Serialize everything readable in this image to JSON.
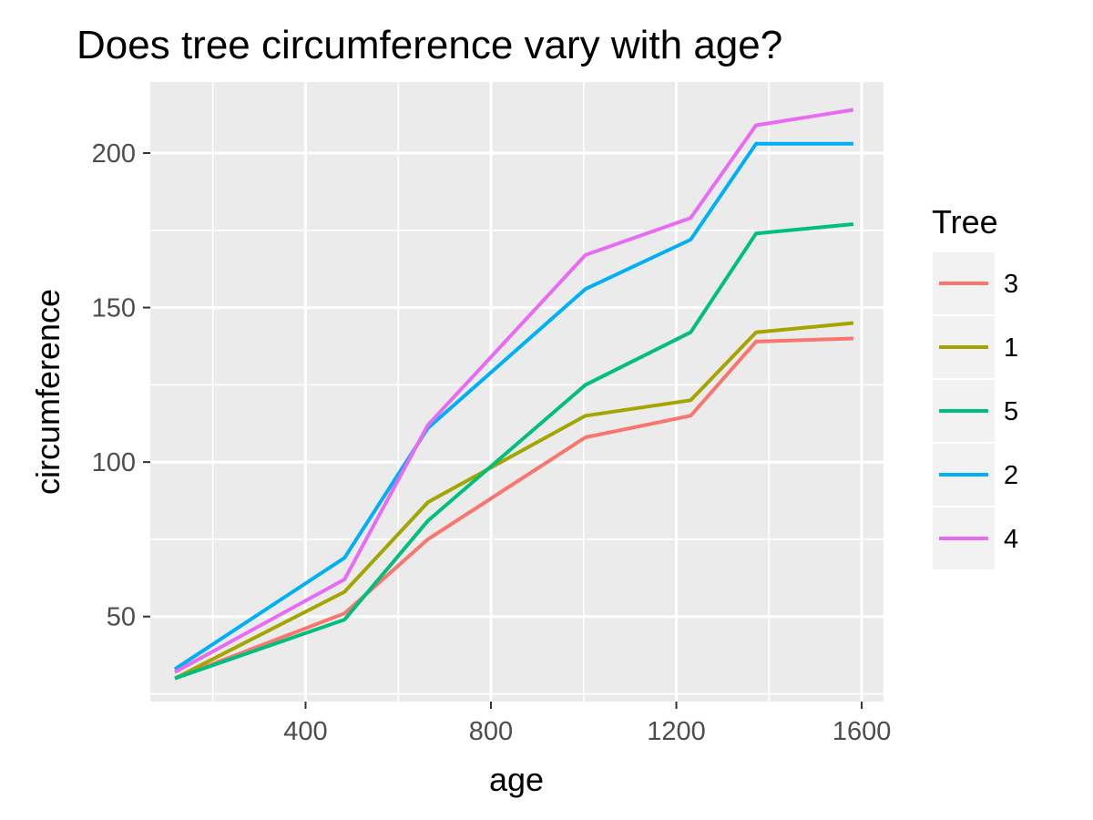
{
  "chart_data": {
    "type": "line",
    "title": "Does tree circumference vary with age?",
    "xlabel": "age",
    "ylabel": "circumference",
    "xlim": [
      65,
      1647
    ],
    "ylim": [
      22.5,
      223
    ],
    "x_ticks": [
      400,
      800,
      1200,
      1600
    ],
    "y_ticks": [
      50,
      100,
      150,
      200
    ],
    "x": [
      118,
      484,
      664,
      1004,
      1231,
      1372,
      1582
    ],
    "grid": true,
    "legend": {
      "title": "Tree",
      "position": "right"
    },
    "series": [
      {
        "name": "3",
        "color": "#F8766D",
        "values": [
          30,
          51,
          75,
          108,
          115,
          139,
          140
        ]
      },
      {
        "name": "1",
        "color": "#A3A500",
        "values": [
          30,
          58,
          87,
          115,
          120,
          142,
          145
        ]
      },
      {
        "name": "5",
        "color": "#00BF7D",
        "values": [
          30,
          49,
          81,
          125,
          142,
          174,
          177
        ]
      },
      {
        "name": "2",
        "color": "#00B0F6",
        "values": [
          33,
          69,
          111,
          156,
          172,
          203,
          203
        ]
      },
      {
        "name": "4",
        "color": "#E76BF3",
        "values": [
          32,
          62,
          112,
          167,
          179,
          209,
          214
        ]
      }
    ]
  }
}
